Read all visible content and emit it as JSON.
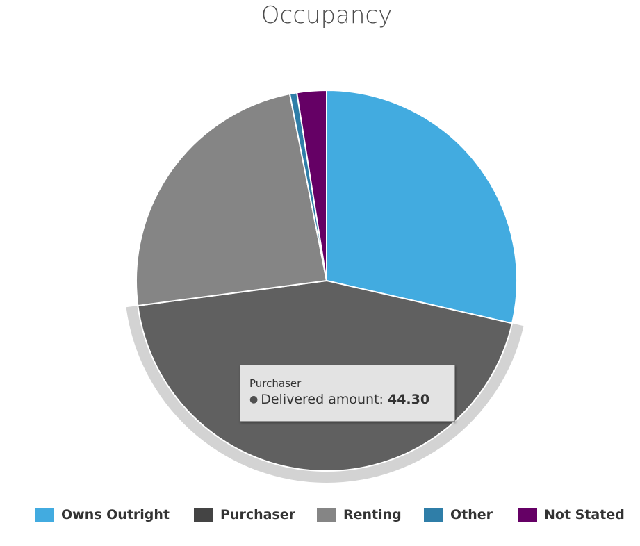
{
  "chart_data": {
    "type": "pie",
    "title": "Occupancy",
    "series_name": "Delivered amount",
    "slices": [
      {
        "name": "Owns Outright",
        "value": 28.6,
        "color": "#42abe0"
      },
      {
        "name": "Purchaser",
        "value": 44.3,
        "color": "#606060"
      },
      {
        "name": "Renting",
        "value": 24.0,
        "color": "#858585"
      },
      {
        "name": "Other",
        "value": 0.6,
        "color": "#2f7ea8"
      },
      {
        "name": "Not Stated",
        "value": 2.5,
        "color": "#650065"
      }
    ],
    "hovered_slice": "Purchaser",
    "legend_position": "bottom"
  },
  "tooltip": {
    "header": "Purchaser",
    "series_label": "Delivered amount:",
    "value": "44.30"
  },
  "legend": {
    "items": [
      {
        "label": "Owns Outright",
        "color": "#42abe0"
      },
      {
        "label": "Purchaser",
        "color": "#444444"
      },
      {
        "label": "Renting",
        "color": "#858585"
      },
      {
        "label": "Other",
        "color": "#2f7ea8"
      },
      {
        "label": "Not Stated",
        "color": "#650065"
      }
    ]
  }
}
